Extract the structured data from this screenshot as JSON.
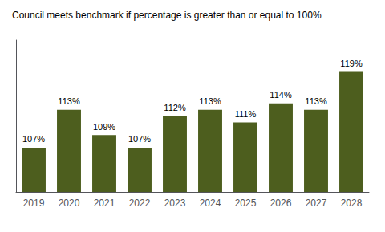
{
  "chart_data": {
    "type": "bar",
    "title": "Council meets benchmark if percentage is greater than or equal to 100%",
    "categories": [
      "2019",
      "2020",
      "2021",
      "2022",
      "2023",
      "2024",
      "2025",
      "2026",
      "2027",
      "2028"
    ],
    "values": [
      107,
      113,
      109,
      107,
      112,
      113,
      111,
      114,
      113,
      119
    ],
    "value_labels": [
      "107%",
      "113%",
      "109%",
      "107%",
      "112%",
      "113%",
      "111%",
      "114%",
      "113%",
      "119%"
    ],
    "color": "#4d5e1e",
    "ylim": [
      100,
      124
    ],
    "yticks": [],
    "tick_labels": "x",
    "data_labels": true,
    "grid": false
  }
}
